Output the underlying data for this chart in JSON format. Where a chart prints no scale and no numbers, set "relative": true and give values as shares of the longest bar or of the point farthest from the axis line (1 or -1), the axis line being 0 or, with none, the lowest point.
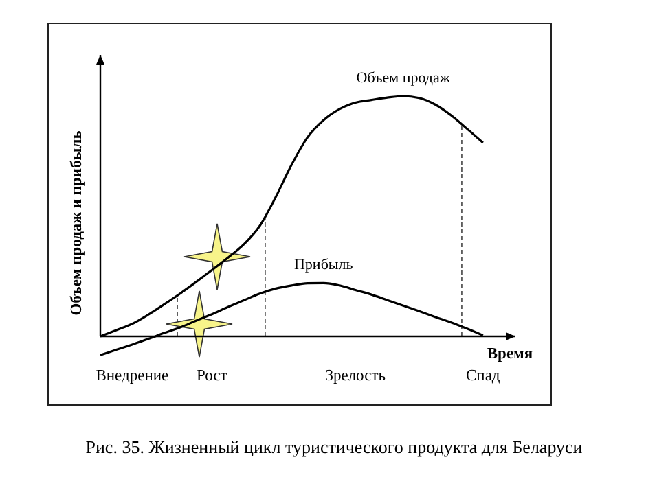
{
  "chart_data": {
    "type": "line",
    "title": "Рис. 35. Жизненный цикл туристического продукта для Беларуси",
    "xlabel": "Время",
    "ylabel": "Объем продаж и прибыль",
    "relative": true,
    "categories": [
      null,
      null,
      "Внедрение",
      null,
      null,
      null,
      null,
      "Рост",
      null,
      null,
      null,
      null,
      null,
      null,
      null,
      null,
      "Зрелость",
      null,
      null,
      null,
      null,
      null,
      null,
      null,
      "Спад",
      null
    ],
    "series": [
      {
        "name": "Объем продаж",
        "color": "#000000",
        "values": [
          0,
          0.026,
          0.052,
          0.09,
          0.133,
          0.178,
          0.226,
          0.276,
          0.327,
          0.383,
          0.46,
          0.58,
          0.715,
          0.829,
          0.9,
          0.946,
          0.973,
          0.984,
          0.994,
          1,
          0.992,
          0.965,
          0.92,
          0.864,
          0.806,
          null
        ]
      },
      {
        "name": "Прибыль",
        "color": "#000000",
        "values": [
          -0.078,
          -0.056,
          -0.034,
          -0.011,
          0.014,
          0.037,
          0.065,
          0.092,
          0.122,
          0.15,
          0.178,
          0.199,
          0.212,
          0.221,
          0.222,
          0.212,
          0.193,
          0.174,
          0.151,
          0.128,
          0.105,
          0.081,
          0.058,
          0.032,
          0.004,
          null
        ]
      }
    ],
    "grid": false,
    "legend": false,
    "marker": "none",
    "line_style": "solid"
  }
}
